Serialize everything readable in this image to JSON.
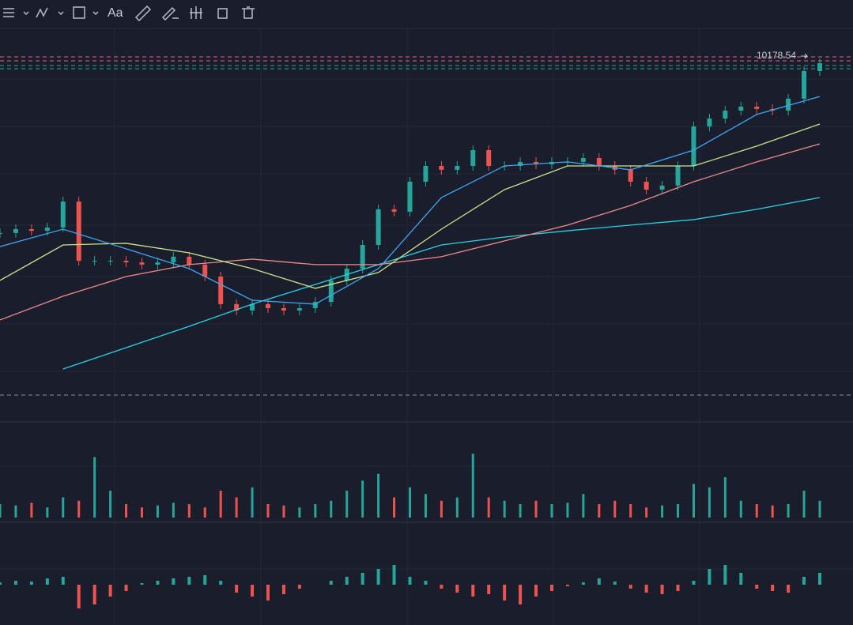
{
  "toolbar": {
    "text_tool": "Aa"
  },
  "chart_data": {
    "type": "candlestick",
    "price_label": "10178.54",
    "ylim": [
      7750,
      10400
    ],
    "up_color": "#26a69a",
    "down_color": "#ef5350",
    "close": [
      9049,
      9075,
      9064,
      9086,
      9260,
      8863,
      8863,
      8863,
      8852,
      8837,
      8852,
      8890,
      8837,
      8757,
      8572,
      8529,
      8572,
      8545,
      8529,
      8545,
      8587,
      8731,
      8810,
      8969,
      9208,
      9192,
      9393,
      9499,
      9473,
      9499,
      9605,
      9499,
      9499,
      9526,
      9510,
      9526,
      9526,
      9552,
      9499,
      9473,
      9393,
      9340,
      9367,
      9499,
      9764,
      9817,
      9870,
      9897,
      9881,
      9870,
      9950,
      10135,
      10188
    ],
    "moving_averages": [
      {
        "color": "#29d3e6",
        "values": [
          null,
          8137,
          8280,
          8423,
          8572,
          8704,
          8837,
          8969,
          9022,
          9064,
          9102,
          9139,
          9208,
          9287
        ]
      },
      {
        "color": "#f08a8a",
        "values": [
          8466,
          8625,
          8757,
          8837,
          8874,
          8837,
          8837,
          8890,
          8996,
          9102,
          9234,
          9393,
          9526,
          9647
        ]
      },
      {
        "color": "#c9e58a",
        "values": [
          8731,
          8969,
          8980,
          8916,
          8810,
          8678,
          8784,
          9075,
          9340,
          9499,
          9499,
          9499,
          9632,
          9780
        ]
      },
      {
        "color": "#3ea6f0",
        "values": [
          8958,
          9075,
          8943,
          8810,
          8598,
          8572,
          8810,
          9287,
          9499,
          9526,
          9473,
          9605,
          9844,
          9965
        ]
      }
    ],
    "volume": {
      "ylim": [
        0,
        100
      ],
      "values": [
        20,
        18,
        22,
        15,
        30,
        25,
        90,
        40,
        20,
        15,
        18,
        22,
        20,
        15,
        40,
        30,
        45,
        20,
        18,
        15,
        20,
        25,
        40,
        55,
        65,
        30,
        45,
        35,
        25,
        30,
        95,
        30,
        25,
        20,
        25,
        20,
        22,
        35,
        20,
        25,
        20,
        15,
        18,
        20,
        50,
        45,
        60,
        25,
        20,
        18,
        20,
        40,
        25
      ]
    },
    "macd": {
      "ylim": [
        -50,
        50
      ],
      "histogram": [
        3,
        5,
        4,
        8,
        10,
        -30,
        -25,
        -15,
        -8,
        2,
        5,
        8,
        10,
        12,
        5,
        -10,
        -15,
        -20,
        -12,
        -5,
        0,
        5,
        10,
        15,
        20,
        25,
        10,
        5,
        -5,
        -10,
        -15,
        -12,
        -20,
        -25,
        -15,
        -8,
        -2,
        3,
        8,
        4,
        -5,
        -10,
        -12,
        -8,
        5,
        20,
        25,
        15,
        -5,
        -8,
        -10,
        10,
        15
      ]
    }
  }
}
